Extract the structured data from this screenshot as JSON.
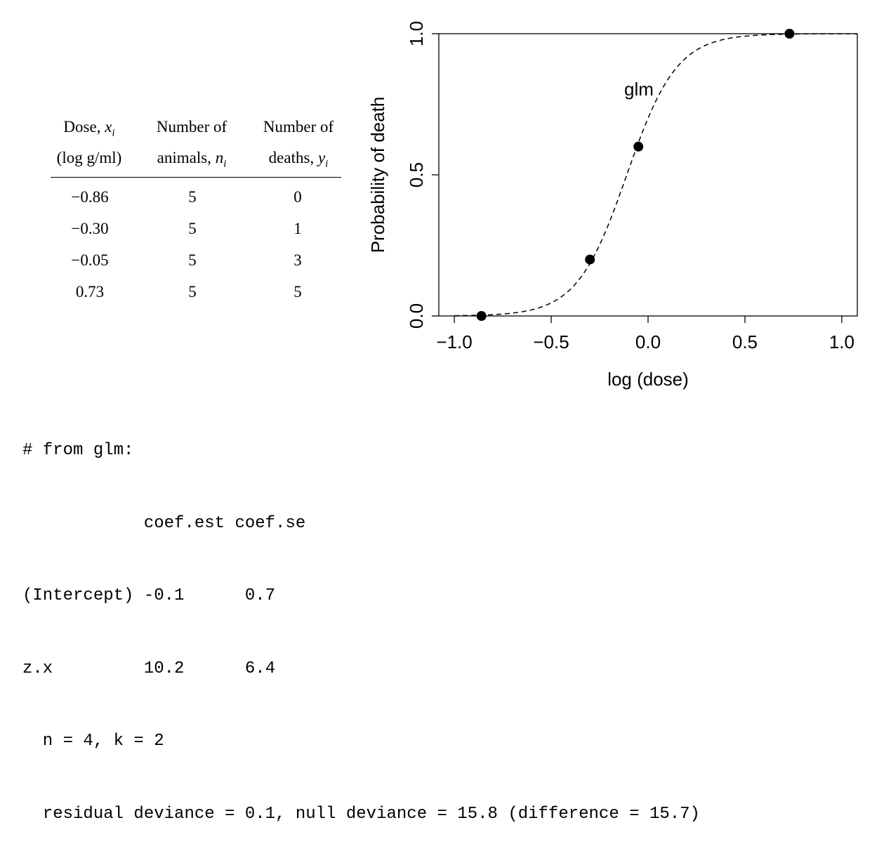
{
  "table": {
    "headers": [
      {
        "line1": "Dose, ",
        "var1": "x",
        "sub1": "i",
        "line2": "(log g/ml)",
        "var2": "",
        "sub2": ""
      },
      {
        "line1": "Number of",
        "var1": "",
        "sub1": "",
        "line2": "animals, ",
        "var2": "n",
        "sub2": "i"
      },
      {
        "line1": "Number of",
        "var1": "",
        "sub1": "",
        "line2": "deaths, ",
        "var2": "y",
        "sub2": "i"
      }
    ],
    "rows": [
      [
        "−0.86",
        "5",
        "0"
      ],
      [
        "−0.30",
        "5",
        "1"
      ],
      [
        "−0.05",
        "5",
        "3"
      ],
      [
        "0.73",
        "5",
        "5"
      ]
    ]
  },
  "chart_data": {
    "type": "scatter",
    "title": "",
    "xlabel": "log (dose)",
    "ylabel": "Probability of death",
    "xlim": [
      -1.08,
      1.08
    ],
    "ylim": [
      0,
      1
    ],
    "xticks": [
      -1.0,
      -0.5,
      0.0,
      0.5,
      1.0
    ],
    "xtick_labels": [
      "−1.0",
      "−0.5",
      "0.0",
      "0.5",
      "1.0"
    ],
    "yticks": [
      0.0,
      0.5,
      1.0
    ],
    "ytick_labels": [
      "0.0",
      "0.5",
      "1.0"
    ],
    "grid": false,
    "points": {
      "x": [
        -0.86,
        -0.3,
        -0.05,
        0.73
      ],
      "y": [
        0.0,
        0.2,
        0.6,
        1.0
      ]
    },
    "curve": {
      "label": "glm",
      "style": "dashed",
      "intercept": 0.85,
      "slope": 7.75
    }
  },
  "output": {
    "lines": [
      "# from glm:",
      "            coef.est coef.se",
      "(Intercept) -0.1      0.7",
      "z.x         10.2      6.4",
      "  n = 4, k = 2",
      "  residual deviance = 0.1, null deviance = 15.8 (difference = 15.7)"
    ]
  }
}
